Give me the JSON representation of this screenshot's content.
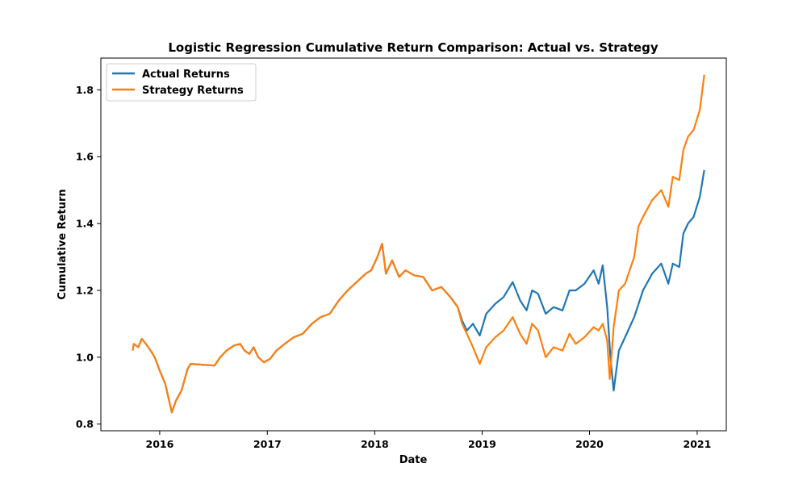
{
  "chart_data": {
    "type": "line",
    "title": "Logistic Regression Cumulative Return Comparison: Actual vs. Strategy",
    "xlabel": "Date",
    "ylabel": "Cumulative Return",
    "xlim": [
      "2015-06-15",
      "2021-04-10"
    ],
    "ylim": [
      0.78,
      1.895
    ],
    "xticks": [
      {
        "date": "2016-01-01",
        "label": "2016"
      },
      {
        "date": "2017-01-01",
        "label": "2017"
      },
      {
        "date": "2018-01-01",
        "label": "2018"
      },
      {
        "date": "2019-01-01",
        "label": "2019"
      },
      {
        "date": "2020-01-01",
        "label": "2020"
      },
      {
        "date": "2021-01-01",
        "label": "2021"
      }
    ],
    "yticks": [
      {
        "value": 0.8,
        "label": "0.8"
      },
      {
        "value": 1.0,
        "label": "1.0"
      },
      {
        "value": 1.2,
        "label": "1.2"
      },
      {
        "value": 1.4,
        "label": "1.4"
      },
      {
        "value": 1.6,
        "label": "1.6"
      },
      {
        "value": 1.8,
        "label": "1.8"
      }
    ],
    "grid": false,
    "legend": "top-left",
    "series": [
      {
        "name": "Actual Returns",
        "color": "#1f77b4",
        "points": [
          [
            "2015-10-01",
            1.02
          ],
          [
            "2015-10-05",
            1.04
          ],
          [
            "2015-10-20",
            1.03
          ],
          [
            "2015-11-01",
            1.055
          ],
          [
            "2015-11-15",
            1.04
          ],
          [
            "2015-12-01",
            1.02
          ],
          [
            "2015-12-15",
            1.0
          ],
          [
            "2016-01-01",
            0.96
          ],
          [
            "2016-01-20",
            0.92
          ],
          [
            "2016-02-11",
            0.835
          ],
          [
            "2016-02-25",
            0.87
          ],
          [
            "2016-03-15",
            0.9
          ],
          [
            "2016-04-05",
            0.965
          ],
          [
            "2016-04-15",
            0.98
          ],
          [
            "2016-07-05",
            0.975
          ],
          [
            "2016-07-25",
            1.0
          ],
          [
            "2016-08-15",
            1.02
          ],
          [
            "2016-09-10",
            1.035
          ],
          [
            "2016-10-01",
            1.04
          ],
          [
            "2016-10-15",
            1.02
          ],
          [
            "2016-11-01",
            1.01
          ],
          [
            "2016-11-15",
            1.03
          ],
          [
            "2016-12-01",
            1.0
          ],
          [
            "2016-12-20",
            0.985
          ],
          [
            "2017-01-10",
            0.995
          ],
          [
            "2017-02-01",
            1.02
          ],
          [
            "2017-03-01",
            1.04
          ],
          [
            "2017-04-01",
            1.06
          ],
          [
            "2017-05-01",
            1.07
          ],
          [
            "2017-06-01",
            1.1
          ],
          [
            "2017-07-01",
            1.12
          ],
          [
            "2017-08-01",
            1.13
          ],
          [
            "2017-09-01",
            1.17
          ],
          [
            "2017-10-01",
            1.2
          ],
          [
            "2017-11-01",
            1.225
          ],
          [
            "2017-12-01",
            1.25
          ],
          [
            "2017-12-20",
            1.26
          ],
          [
            "2018-01-10",
            1.3
          ],
          [
            "2018-01-26",
            1.34
          ],
          [
            "2018-02-08",
            1.25
          ],
          [
            "2018-03-01",
            1.29
          ],
          [
            "2018-03-25",
            1.24
          ],
          [
            "2018-04-15",
            1.26
          ],
          [
            "2018-05-15",
            1.245
          ],
          [
            "2018-06-15",
            1.24
          ],
          [
            "2018-07-15",
            1.2
          ],
          [
            "2018-08-15",
            1.21
          ],
          [
            "2018-09-15",
            1.18
          ],
          [
            "2018-10-10",
            1.15
          ],
          [
            "2018-10-25",
            1.11
          ],
          [
            "2018-11-10",
            1.08
          ],
          [
            "2018-12-01",
            1.1
          ],
          [
            "2018-12-24",
            1.065
          ],
          [
            "2019-01-15",
            1.13
          ],
          [
            "2019-02-15",
            1.16
          ],
          [
            "2019-03-15",
            1.18
          ],
          [
            "2019-04-15",
            1.225
          ],
          [
            "2019-05-10",
            1.17
          ],
          [
            "2019-06-01",
            1.14
          ],
          [
            "2019-06-20",
            1.2
          ],
          [
            "2019-07-10",
            1.19
          ],
          [
            "2019-08-05",
            1.13
          ],
          [
            "2019-09-01",
            1.15
          ],
          [
            "2019-10-01",
            1.14
          ],
          [
            "2019-10-25",
            1.2
          ],
          [
            "2019-11-15",
            1.2
          ],
          [
            "2019-12-15",
            1.22
          ],
          [
            "2020-01-15",
            1.26
          ],
          [
            "2020-02-01",
            1.22
          ],
          [
            "2020-02-15",
            1.275
          ],
          [
            "2020-03-01",
            1.15
          ],
          [
            "2020-03-12",
            1.0
          ],
          [
            "2020-03-23",
            0.9
          ],
          [
            "2020-04-10",
            1.02
          ],
          [
            "2020-05-01",
            1.06
          ],
          [
            "2020-06-01",
            1.12
          ],
          [
            "2020-07-01",
            1.2
          ],
          [
            "2020-08-01",
            1.25
          ],
          [
            "2020-09-01",
            1.28
          ],
          [
            "2020-09-25",
            1.22
          ],
          [
            "2020-10-10",
            1.28
          ],
          [
            "2020-11-01",
            1.27
          ],
          [
            "2020-11-15",
            1.37
          ],
          [
            "2020-12-01",
            1.4
          ],
          [
            "2020-12-20",
            1.42
          ],
          [
            "2021-01-10",
            1.48
          ],
          [
            "2021-01-25",
            1.56
          ]
        ]
      },
      {
        "name": "Strategy Returns",
        "color": "#ff7f0e",
        "points": [
          [
            "2015-10-01",
            1.02
          ],
          [
            "2015-10-05",
            1.04
          ],
          [
            "2015-10-20",
            1.03
          ],
          [
            "2015-11-01",
            1.055
          ],
          [
            "2015-11-15",
            1.04
          ],
          [
            "2015-12-01",
            1.02
          ],
          [
            "2015-12-15",
            1.0
          ],
          [
            "2016-01-01",
            0.96
          ],
          [
            "2016-01-20",
            0.92
          ],
          [
            "2016-02-11",
            0.835
          ],
          [
            "2016-02-25",
            0.87
          ],
          [
            "2016-03-15",
            0.9
          ],
          [
            "2016-04-05",
            0.965
          ],
          [
            "2016-04-15",
            0.98
          ],
          [
            "2016-07-05",
            0.975
          ],
          [
            "2016-07-25",
            1.0
          ],
          [
            "2016-08-15",
            1.02
          ],
          [
            "2016-09-10",
            1.035
          ],
          [
            "2016-10-01",
            1.04
          ],
          [
            "2016-10-15",
            1.02
          ],
          [
            "2016-11-01",
            1.01
          ],
          [
            "2016-11-15",
            1.03
          ],
          [
            "2016-12-01",
            1.0
          ],
          [
            "2016-12-20",
            0.985
          ],
          [
            "2017-01-10",
            0.995
          ],
          [
            "2017-02-01",
            1.02
          ],
          [
            "2017-03-01",
            1.04
          ],
          [
            "2017-04-01",
            1.06
          ],
          [
            "2017-05-01",
            1.07
          ],
          [
            "2017-06-01",
            1.1
          ],
          [
            "2017-07-01",
            1.12
          ],
          [
            "2017-08-01",
            1.13
          ],
          [
            "2017-09-01",
            1.17
          ],
          [
            "2017-10-01",
            1.2
          ],
          [
            "2017-11-01",
            1.225
          ],
          [
            "2017-12-01",
            1.25
          ],
          [
            "2017-12-20",
            1.26
          ],
          [
            "2018-01-10",
            1.3
          ],
          [
            "2018-01-26",
            1.34
          ],
          [
            "2018-02-08",
            1.25
          ],
          [
            "2018-03-01",
            1.29
          ],
          [
            "2018-03-25",
            1.24
          ],
          [
            "2018-04-15",
            1.26
          ],
          [
            "2018-05-15",
            1.245
          ],
          [
            "2018-06-15",
            1.24
          ],
          [
            "2018-07-15",
            1.2
          ],
          [
            "2018-08-15",
            1.21
          ],
          [
            "2018-09-15",
            1.18
          ],
          [
            "2018-10-10",
            1.15
          ],
          [
            "2018-10-25",
            1.1
          ],
          [
            "2018-11-10",
            1.07
          ],
          [
            "2018-12-01",
            1.03
          ],
          [
            "2018-12-24",
            0.98
          ],
          [
            "2019-01-15",
            1.03
          ],
          [
            "2019-02-15",
            1.06
          ],
          [
            "2019-03-15",
            1.08
          ],
          [
            "2019-04-15",
            1.12
          ],
          [
            "2019-05-10",
            1.07
          ],
          [
            "2019-06-01",
            1.04
          ],
          [
            "2019-06-20",
            1.1
          ],
          [
            "2019-07-10",
            1.08
          ],
          [
            "2019-08-05",
            1.0
          ],
          [
            "2019-09-01",
            1.03
          ],
          [
            "2019-10-01",
            1.02
          ],
          [
            "2019-10-25",
            1.07
          ],
          [
            "2019-11-15",
            1.04
          ],
          [
            "2019-12-15",
            1.06
          ],
          [
            "2020-01-15",
            1.09
          ],
          [
            "2020-02-01",
            1.08
          ],
          [
            "2020-02-15",
            1.1
          ],
          [
            "2020-03-01",
            1.05
          ],
          [
            "2020-03-10",
            0.935
          ],
          [
            "2020-03-23",
            1.09
          ],
          [
            "2020-04-10",
            1.2
          ],
          [
            "2020-05-01",
            1.22
          ],
          [
            "2020-06-01",
            1.3
          ],
          [
            "2020-06-15",
            1.39
          ],
          [
            "2020-07-01",
            1.42
          ],
          [
            "2020-08-01",
            1.47
          ],
          [
            "2020-09-01",
            1.5
          ],
          [
            "2020-09-25",
            1.45
          ],
          [
            "2020-10-10",
            1.54
          ],
          [
            "2020-11-01",
            1.53
          ],
          [
            "2020-11-15",
            1.62
          ],
          [
            "2020-12-01",
            1.66
          ],
          [
            "2020-12-20",
            1.68
          ],
          [
            "2021-01-10",
            1.74
          ],
          [
            "2021-01-25",
            1.845
          ]
        ]
      }
    ]
  }
}
